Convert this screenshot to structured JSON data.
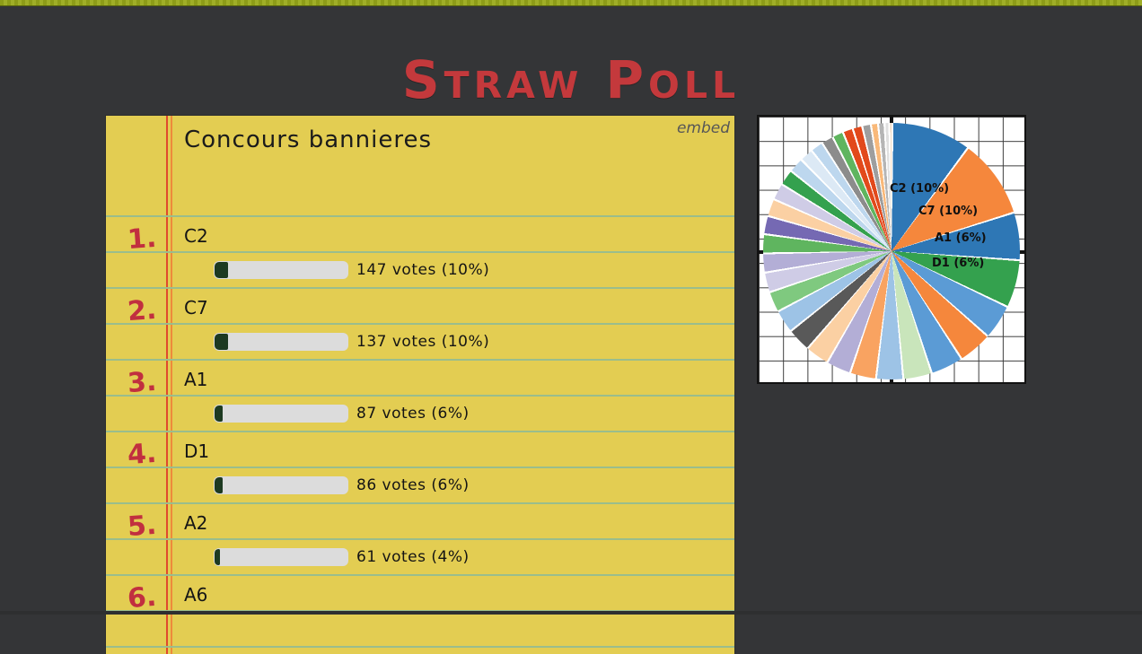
{
  "page": {
    "title": "Straw Poll"
  },
  "poll": {
    "title": "Concours bannieres",
    "embed_label": "embed",
    "items": [
      {
        "rank": "1.",
        "label": "C2",
        "votes_text": "147 votes (10%)",
        "percent": 10
      },
      {
        "rank": "2.",
        "label": "C7",
        "votes_text": "137 votes (10%)",
        "percent": 10
      },
      {
        "rank": "3.",
        "label": "A1",
        "votes_text": "87 votes (6%)",
        "percent": 6
      },
      {
        "rank": "4.",
        "label": "D1",
        "votes_text": "86 votes (6%)",
        "percent": 6
      },
      {
        "rank": "5.",
        "label": "A2",
        "votes_text": "61 votes (4%)",
        "percent": 4
      },
      {
        "rank": "6.",
        "label": "A6",
        "votes_text": "",
        "percent": null
      }
    ]
  },
  "pie": {
    "labels": [
      {
        "text": "C2 (10%)"
      },
      {
        "text": "C7 (10%)"
      },
      {
        "text": "A1 (6%)"
      },
      {
        "text": "D1 (6%)"
      }
    ]
  },
  "chart_data": {
    "type": "pie",
    "title": "Concours bannieres",
    "direction": "clockwise",
    "start_angle": "12 o'clock",
    "slices": [
      {
        "label": "C2",
        "percent": 10,
        "votes": 147,
        "color": "#2e77b5"
      },
      {
        "label": "C7",
        "percent": 10,
        "votes": 137,
        "color": "#f5873c"
      },
      {
        "label": "A1",
        "percent": 6,
        "votes": 87,
        "color": "#2e77b5"
      },
      {
        "label": "D1",
        "percent": 6,
        "votes": 86,
        "color": "#34a14e"
      },
      {
        "label": "",
        "percent": 4.4,
        "color": "#5b9bd5"
      },
      {
        "label": "",
        "percent": 4.3,
        "color": "#f5873c"
      },
      {
        "label": "",
        "percent": 4.1,
        "color": "#5b9bd5"
      },
      {
        "label": "",
        "percent": 3.6,
        "color": "#c9e5bb"
      },
      {
        "label": "",
        "percent": 3.4,
        "color": "#9dc3e6"
      },
      {
        "label": "",
        "percent": 3.3,
        "color": "#f9a361"
      },
      {
        "label": "",
        "percent": 3.1,
        "color": "#b3aed6"
      },
      {
        "label": "",
        "percent": 3.0,
        "color": "#fbd0a3"
      },
      {
        "label": "",
        "percent": 3.0,
        "color": "#595959"
      },
      {
        "label": "",
        "percent": 2.9,
        "color": "#9dc3e6"
      },
      {
        "label": "",
        "percent": 2.6,
        "color": "#7fc97f"
      },
      {
        "label": "",
        "percent": 2.5,
        "color": "#cfcce6"
      },
      {
        "label": "",
        "percent": 2.4,
        "color": "#b3aed6"
      },
      {
        "label": "",
        "percent": 2.4,
        "color": "#5fb55f"
      },
      {
        "label": "",
        "percent": 2.3,
        "color": "#7569b3"
      },
      {
        "label": "",
        "percent": 2.2,
        "color": "#fbd0a3"
      },
      {
        "label": "",
        "percent": 2.1,
        "color": "#cfcce6"
      },
      {
        "label": "",
        "percent": 2.0,
        "color": "#34a14e"
      },
      {
        "label": "",
        "percent": 1.9,
        "color": "#bdd7ee"
      },
      {
        "label": "",
        "percent": 1.7,
        "color": "#dce9f5"
      },
      {
        "label": "",
        "percent": 1.6,
        "color": "#bdd7ee"
      },
      {
        "label": "",
        "percent": 1.5,
        "color": "#8c8c8c"
      },
      {
        "label": "",
        "percent": 1.4,
        "color": "#5fb55f"
      },
      {
        "label": "",
        "percent": 1.3,
        "color": "#e2491b"
      },
      {
        "label": "",
        "percent": 1.2,
        "color": "#e2491b"
      },
      {
        "label": "",
        "percent": 1.1,
        "color": "#9e9e9e"
      },
      {
        "label": "",
        "percent": 0.9,
        "color": "#f9b97a"
      },
      {
        "label": "",
        "percent": 0.8,
        "color": "#b5b5b5"
      },
      {
        "label": "",
        "percent": 0.6,
        "color": "#e0e0e0"
      },
      {
        "label": "",
        "percent": 0.4,
        "color": "#f0d9c0"
      }
    ]
  },
  "colors": {
    "page_bg": "#343537",
    "top_strip_green": "#95a41f",
    "title_red": "#c4393c",
    "card_yellow": "#e3cd52",
    "rule_green": "#9abd8c",
    "margin_red": "#e04a2d",
    "rank_red": "#c12f3f",
    "bar_bg": "#dcdcdc",
    "bar_fill_green": "#1d3a21",
    "embed_gray": "#575757"
  }
}
